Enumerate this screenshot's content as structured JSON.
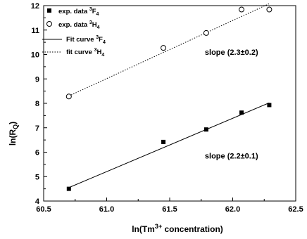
{
  "chart_data": {
    "type": "scatter",
    "xlabel": {
      "pre": "ln(Tm",
      "sup": "3+",
      "post": " concentration)"
    },
    "ylabel": {
      "pre": "ln(R",
      "sub": "Q",
      "post": ")"
    },
    "xlim": [
      60.5,
      62.5
    ],
    "ylim": [
      4,
      12
    ],
    "xticks": [
      60.5,
      61.0,
      61.5,
      62.0,
      62.5
    ],
    "xtick_labels": [
      "60.5",
      "61.0",
      "61.5",
      "62.0",
      "62.5"
    ],
    "yticks": [
      4,
      5,
      6,
      7,
      8,
      9,
      10,
      11,
      12
    ],
    "ytick_labels": [
      "4",
      "5",
      "6",
      "7",
      "8",
      "9",
      "10",
      "11",
      "12"
    ],
    "grid": false,
    "legend_position": "top-left",
    "series": [
      {
        "marker": "filled-square",
        "legend": {
          "pre": "exp. data ",
          "sup": "3",
          "main": "F",
          "sub": "4"
        },
        "x": [
          60.7,
          61.45,
          61.79,
          62.07,
          62.29
        ],
        "y": [
          4.5,
          6.42,
          6.93,
          7.62,
          7.93
        ]
      },
      {
        "marker": "open-circle",
        "legend": {
          "pre": "exp. data ",
          "sup": "3",
          "main": "H",
          "sub": "4"
        },
        "x": [
          60.7,
          61.45,
          61.79,
          62.07,
          62.29
        ],
        "y": [
          8.28,
          10.27,
          10.88,
          11.84,
          11.84
        ]
      }
    ],
    "fits": [
      {
        "style": "solid",
        "legend": {
          "pre": "Fit curve ",
          "sup": "3",
          "main": "F",
          "sub": "4"
        },
        "x": [
          60.7,
          62.29
        ],
        "y": [
          4.55,
          8.02
        ]
      },
      {
        "style": "dotted",
        "legend": {
          "pre": "fit curve ",
          "sup": "3",
          "main": "H",
          "sub": "4"
        },
        "x": [
          60.7,
          62.29
        ],
        "y": [
          8.3,
          12.08
        ]
      }
    ],
    "annotations": [
      {
        "text": "slope (2.3±0.2)",
        "x": 61.79,
        "y": 10.1
      },
      {
        "text": "slope (2.2±0.1)",
        "x": 61.79,
        "y": 5.85
      }
    ]
  }
}
